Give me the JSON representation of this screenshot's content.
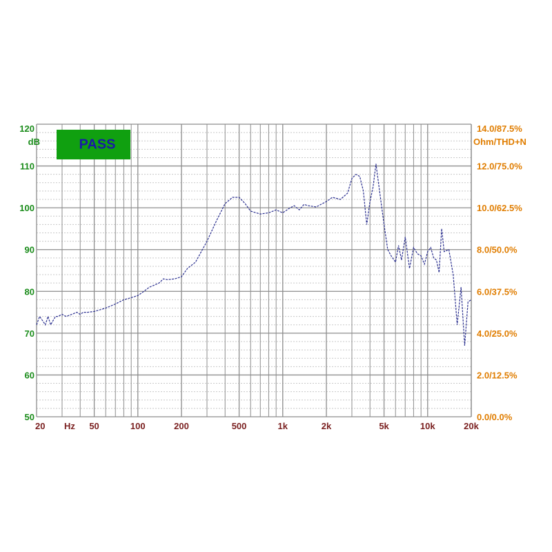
{
  "colors": {
    "background": "#ffffff",
    "grid_major": "#8c8c8c",
    "grid_minor": "#c8c8c8",
    "curve": "#2a2f8f",
    "left_axis": "#1a8c1a",
    "right_axis": "#e07d00",
    "x_axis": "#7a1f1f",
    "badge_fill": "#10a010",
    "badge_text": "#1a1aa6"
  },
  "badge": {
    "label": "PASS"
  },
  "chart_data": {
    "type": "line",
    "x_scale": "log",
    "xlim": [
      20,
      20000
    ],
    "ylim": [
      50,
      120
    ],
    "grid": true,
    "left_unit_label": "dB",
    "right_unit_label": "Ohm/THD+N",
    "x_unit_label": "Hz",
    "x_tick_labels": [
      {
        "value": 20,
        "label": "20"
      },
      {
        "value": 50,
        "label": "50"
      },
      {
        "value": 100,
        "label": "100"
      },
      {
        "value": 200,
        "label": "200"
      },
      {
        "value": 500,
        "label": "500"
      },
      {
        "value": 1000,
        "label": "1k"
      },
      {
        "value": 2000,
        "label": "2k"
      },
      {
        "value": 5000,
        "label": "5k"
      },
      {
        "value": 10000,
        "label": "10k"
      },
      {
        "value": 20000,
        "label": "20k"
      }
    ],
    "y_tick_labels": [
      "50",
      "60",
      "70",
      "80",
      "90",
      "100",
      "110",
      "120"
    ],
    "y_ticks": [
      50,
      60,
      70,
      80,
      90,
      100,
      110,
      120
    ],
    "right_tick_labels": [
      "0.0/0.0%",
      "2.0/12.5%",
      "4.0/25.0%",
      "6.0/37.5%",
      "8.0/50.0%",
      "10.0/62.5%",
      "12.0/75.0%",
      "14.0/87.5%"
    ],
    "series": [
      {
        "x": [
          20,
          21,
          22,
          23,
          24,
          25,
          26,
          27,
          28,
          30,
          32,
          35,
          38,
          40,
          42,
          45,
          50,
          60,
          70,
          80,
          90,
          100,
          110,
          120,
          130,
          140,
          150,
          160,
          180,
          200,
          220,
          250,
          300,
          350,
          400,
          450,
          500,
          550,
          600,
          700,
          800,
          900,
          1000,
          1100,
          1200,
          1300,
          1400,
          1500,
          1700,
          2000,
          2200,
          2500,
          2800,
          3000,
          3200,
          3400,
          3600,
          3800,
          4000,
          4200,
          4400,
          4700,
          5000,
          5300,
          5600,
          6000,
          6300,
          6600,
          7000,
          7500,
          8000,
          8500,
          9000,
          9500,
          10000,
          10500,
          11000,
          11500,
          12000,
          12500,
          13000,
          14000,
          15000,
          16000,
          17000,
          18000,
          19000,
          20000
        ],
        "y": [
          72,
          74,
          73,
          72,
          74,
          72,
          73,
          74,
          74,
          74.5,
          74,
          74.5,
          75,
          74.5,
          75,
          75,
          75.2,
          76,
          77,
          78,
          78.5,
          79,
          80,
          81,
          81.5,
          82,
          83,
          82.8,
          83,
          83.5,
          85.5,
          87,
          92,
          97,
          101,
          102.5,
          102.5,
          101,
          99.2,
          98.5,
          98.8,
          99.5,
          98.8,
          99.8,
          100.5,
          99.5,
          100.8,
          100.5,
          100.2,
          101.5,
          102.5,
          102,
          103.5,
          107,
          108,
          107.5,
          104,
          96,
          101.5,
          105,
          110.5,
          103,
          96,
          90,
          88.5,
          87,
          91,
          87.5,
          93,
          85.5,
          90.5,
          89,
          88.5,
          86.5,
          89.5,
          90.5,
          88,
          87.5,
          84.5,
          95,
          89.5,
          90,
          84,
          72,
          81,
          67,
          77.5,
          78
        ]
      }
    ]
  }
}
